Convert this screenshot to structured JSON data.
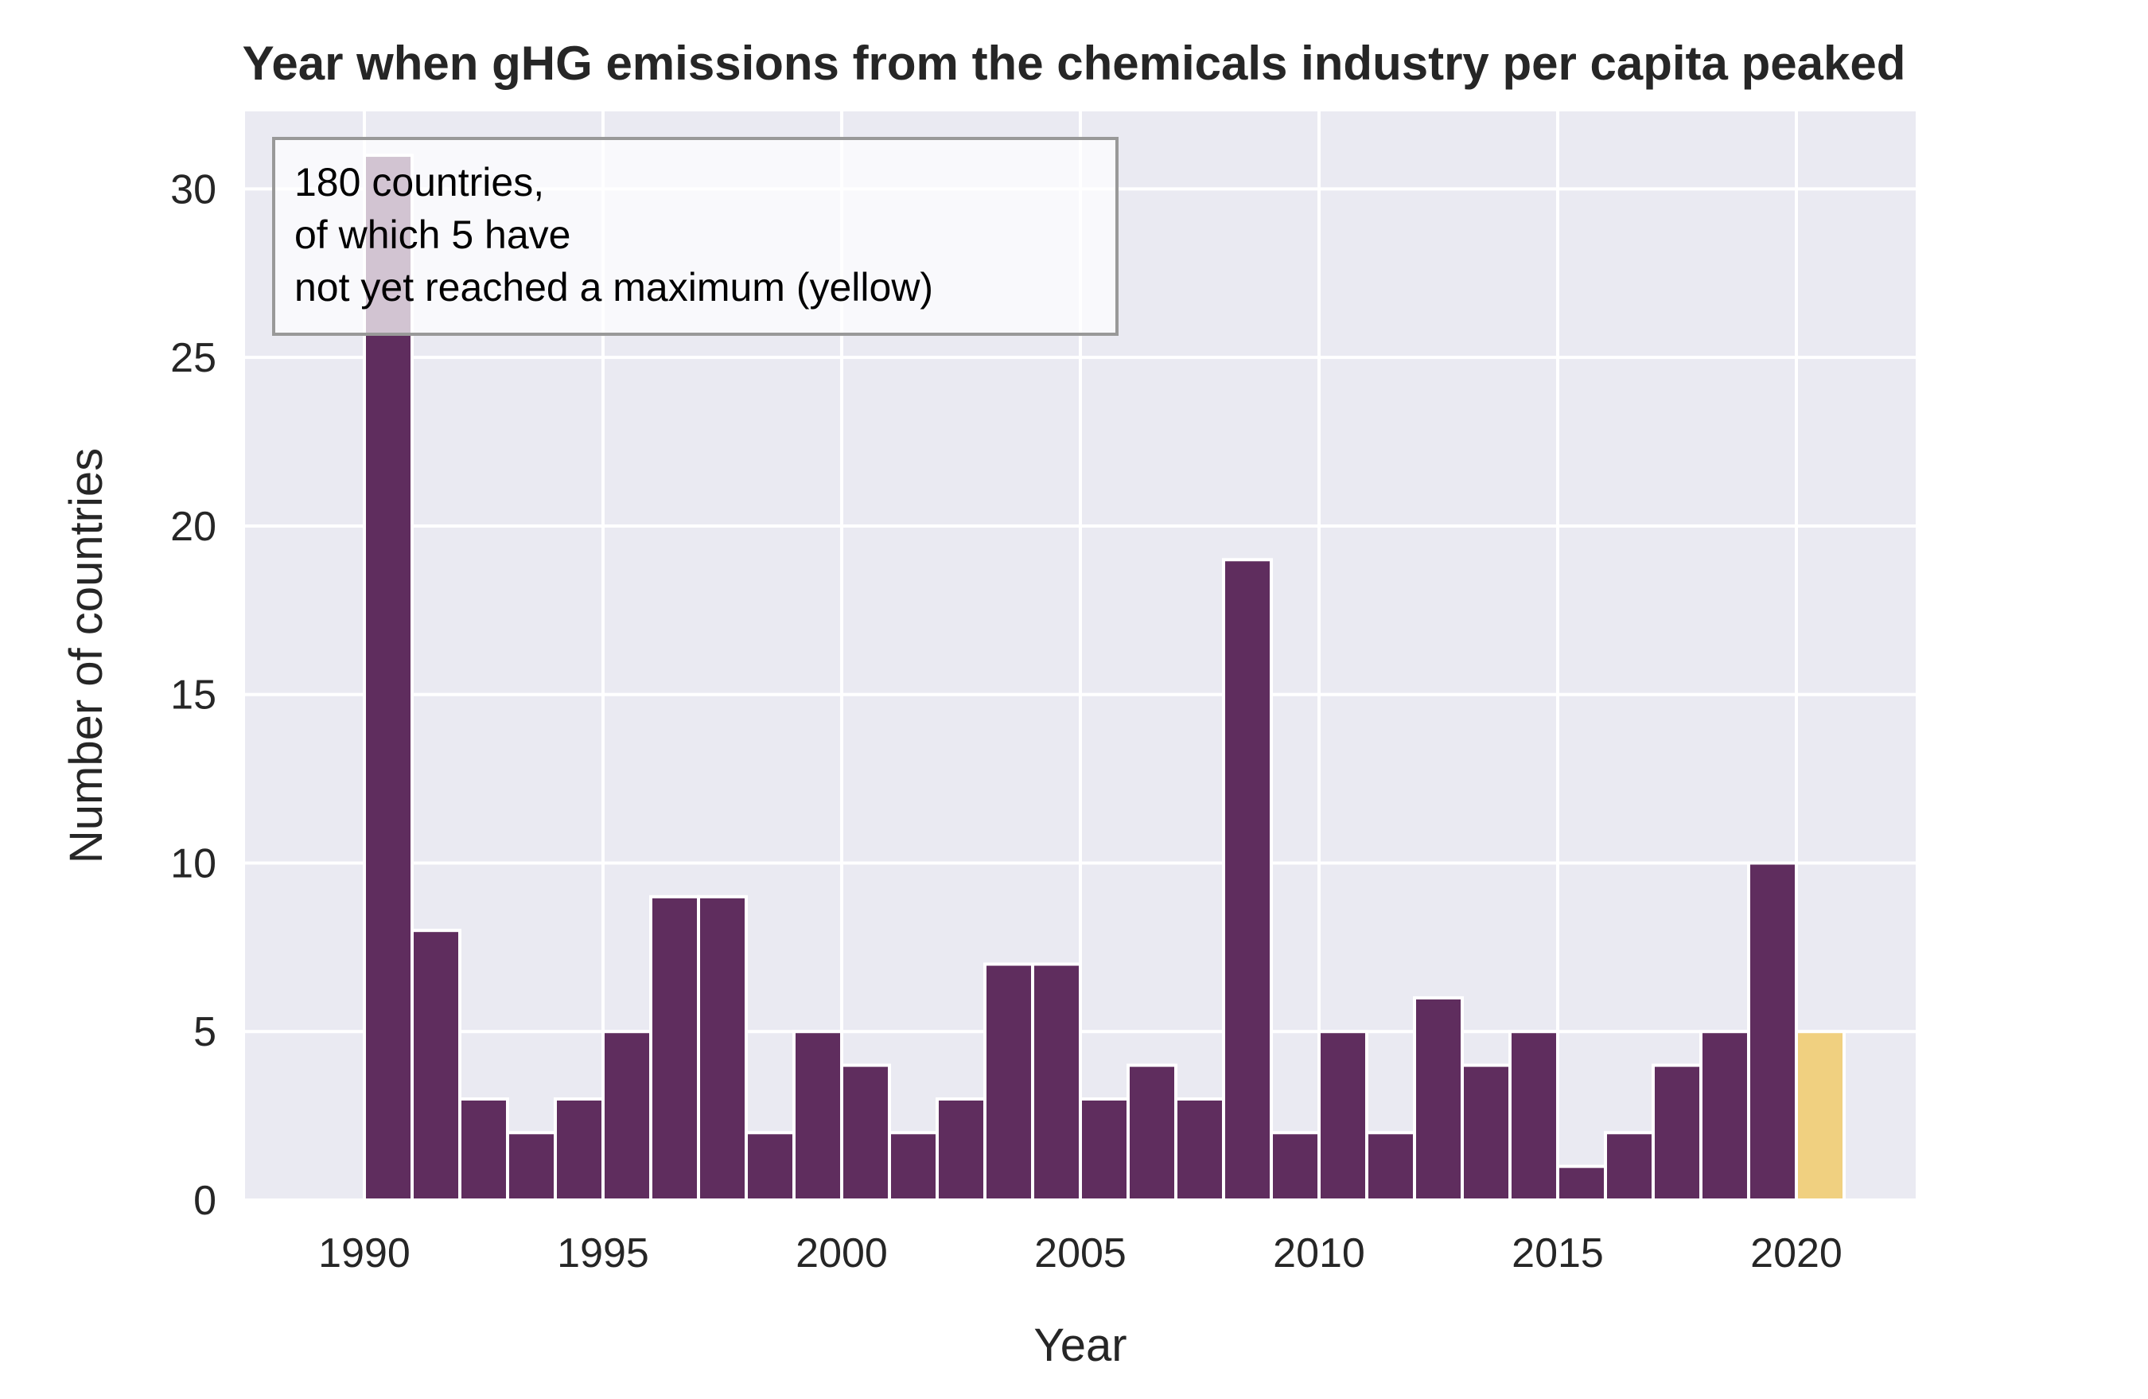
{
  "chart_data": {
    "type": "bar",
    "title": "Year when gHG emissions from the chemicals industry per capita peaked",
    "xlabel": "Year",
    "ylabel": "Number of countries",
    "xlim": [
      1987.5,
      2022.5
    ],
    "ylim": [
      0,
      32.3
    ],
    "xticks": [
      1990,
      1995,
      2000,
      2005,
      2010,
      2015,
      2020
    ],
    "yticks": [
      0,
      5,
      10,
      15,
      20,
      25,
      30
    ],
    "grid": true,
    "bin_width": 1,
    "bars": [
      {
        "year": 1990,
        "count": 31,
        "reached_max": true
      },
      {
        "year": 1991,
        "count": 8,
        "reached_max": true
      },
      {
        "year": 1992,
        "count": 3,
        "reached_max": true
      },
      {
        "year": 1993,
        "count": 2,
        "reached_max": true
      },
      {
        "year": 1994,
        "count": 3,
        "reached_max": true
      },
      {
        "year": 1995,
        "count": 5,
        "reached_max": true
      },
      {
        "year": 1996,
        "count": 9,
        "reached_max": true
      },
      {
        "year": 1997,
        "count": 9,
        "reached_max": true
      },
      {
        "year": 1998,
        "count": 2,
        "reached_max": true
      },
      {
        "year": 1999,
        "count": 5,
        "reached_max": true
      },
      {
        "year": 2000,
        "count": 4,
        "reached_max": true
      },
      {
        "year": 2001,
        "count": 2,
        "reached_max": true
      },
      {
        "year": 2002,
        "count": 3,
        "reached_max": true
      },
      {
        "year": 2003,
        "count": 7,
        "reached_max": true
      },
      {
        "year": 2004,
        "count": 7,
        "reached_max": true
      },
      {
        "year": 2005,
        "count": 3,
        "reached_max": true
      },
      {
        "year": 2006,
        "count": 4,
        "reached_max": true
      },
      {
        "year": 2007,
        "count": 3,
        "reached_max": true
      },
      {
        "year": 2008,
        "count": 19,
        "reached_max": true
      },
      {
        "year": 2009,
        "count": 2,
        "reached_max": true
      },
      {
        "year": 2010,
        "count": 5,
        "reached_max": true
      },
      {
        "year": 2011,
        "count": 2,
        "reached_max": true
      },
      {
        "year": 2012,
        "count": 6,
        "reached_max": true
      },
      {
        "year": 2013,
        "count": 4,
        "reached_max": true
      },
      {
        "year": 2014,
        "count": 5,
        "reached_max": true
      },
      {
        "year": 2015,
        "count": 1,
        "reached_max": true
      },
      {
        "year": 2016,
        "count": 2,
        "reached_max": true
      },
      {
        "year": 2017,
        "count": 4,
        "reached_max": true
      },
      {
        "year": 2018,
        "count": 5,
        "reached_max": true
      },
      {
        "year": 2019,
        "count": 10,
        "reached_max": true
      },
      {
        "year": 2020,
        "count": 5,
        "reached_max": false
      }
    ],
    "annotation": {
      "lines": [
        "180 countries,",
        "of which 5 have",
        "not yet reached a maximum (yellow)"
      ],
      "placement": "top-left"
    },
    "colors": {
      "background": "#eaeaf2",
      "grid": "#ffffff",
      "bar_peaked": "#5f2d5e",
      "bar_not_peaked": "#f0d080",
      "bar_edge": "#ffffff"
    }
  }
}
